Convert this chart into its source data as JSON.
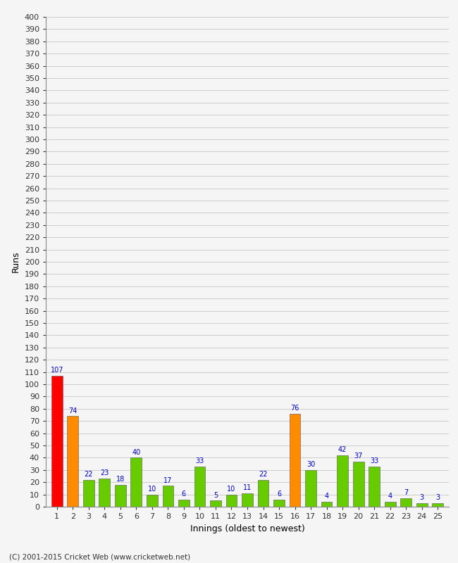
{
  "title": "",
  "xlabel": "Innings (oldest to newest)",
  "ylabel": "Runs",
  "values": [
    107,
    74,
    22,
    23,
    18,
    40,
    10,
    17,
    6,
    33,
    5,
    10,
    11,
    22,
    6,
    76,
    30,
    4,
    42,
    37,
    33,
    4,
    7,
    3,
    3
  ],
  "colors": [
    "#ff0000",
    "#ff8c00",
    "#66cc00",
    "#66cc00",
    "#66cc00",
    "#66cc00",
    "#66cc00",
    "#66cc00",
    "#66cc00",
    "#66cc00",
    "#66cc00",
    "#66cc00",
    "#66cc00",
    "#66cc00",
    "#66cc00",
    "#ff8c00",
    "#66cc00",
    "#66cc00",
    "#66cc00",
    "#66cc00",
    "#66cc00",
    "#66cc00",
    "#66cc00",
    "#66cc00",
    "#66cc00"
  ],
  "innings": [
    1,
    2,
    3,
    4,
    5,
    6,
    7,
    8,
    9,
    10,
    11,
    12,
    13,
    14,
    15,
    16,
    17,
    18,
    19,
    20,
    21,
    22,
    23,
    24,
    25
  ],
  "ylim": [
    0,
    400
  ],
  "ytick_step": 10,
  "background_color": "#f5f5f5",
  "grid_color": "#cccccc",
  "label_color": "#0000cc",
  "bar_edge_color": "#555555",
  "axis_label_fontsize": 9,
  "tick_fontsize": 8,
  "value_label_fontsize": 7,
  "footer": "(C) 2001-2015 Cricket Web (www.cricketweb.net)",
  "footer_fontsize": 7.5
}
